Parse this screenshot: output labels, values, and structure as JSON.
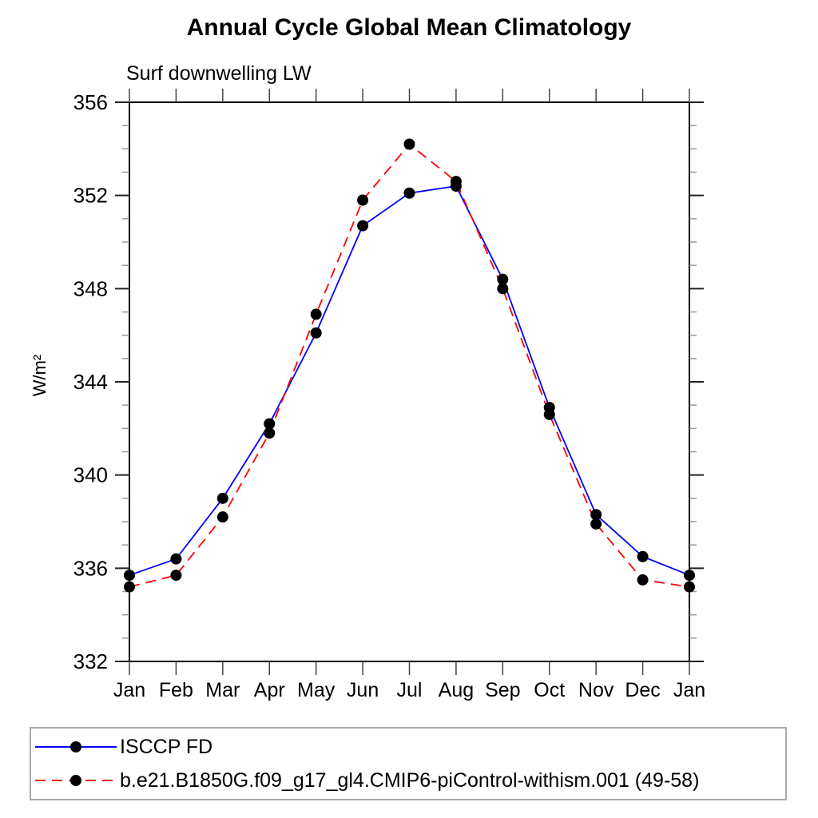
{
  "chart_data": {
    "type": "line",
    "title": "Annual Cycle Global Mean Climatology",
    "subtitle": "Surf downwelling LW",
    "ylabel": "W/m²",
    "xlabel": "",
    "x_labels": [
      "Jan",
      "Feb",
      "Mar",
      "Apr",
      "May",
      "Jun",
      "Jul",
      "Aug",
      "Sep",
      "Oct",
      "Nov",
      "Dec",
      "Jan"
    ],
    "ylim": [
      332,
      356
    ],
    "y_ticks": [
      332,
      336,
      340,
      344,
      348,
      352,
      356
    ],
    "y_major_step": 4,
    "y_minor_step": 1,
    "grid": false,
    "legend_position": "bottom-left-box",
    "marker": "filled-circle",
    "marker_color": "#000000",
    "axis_color": "#000000",
    "series": [
      {
        "name": "ISCCP FD",
        "color": "#0000ff",
        "style": "solid",
        "dash": "",
        "values": [
          335.7,
          336.4,
          339.0,
          342.2,
          346.1,
          350.7,
          352.1,
          352.4,
          348.4,
          342.9,
          338.3,
          336.5,
          335.7
        ]
      },
      {
        "name": "b.e21.B1850G.f09_g17_gl4.CMIP6-piControl-withism.001 (49-58)",
        "color": "#ff0000",
        "style": "dashed",
        "dash": "13,8",
        "values": [
          335.2,
          335.7,
          338.2,
          341.8,
          346.9,
          351.8,
          354.2,
          352.6,
          348.0,
          342.6,
          337.9,
          335.5,
          335.2
        ]
      }
    ]
  }
}
